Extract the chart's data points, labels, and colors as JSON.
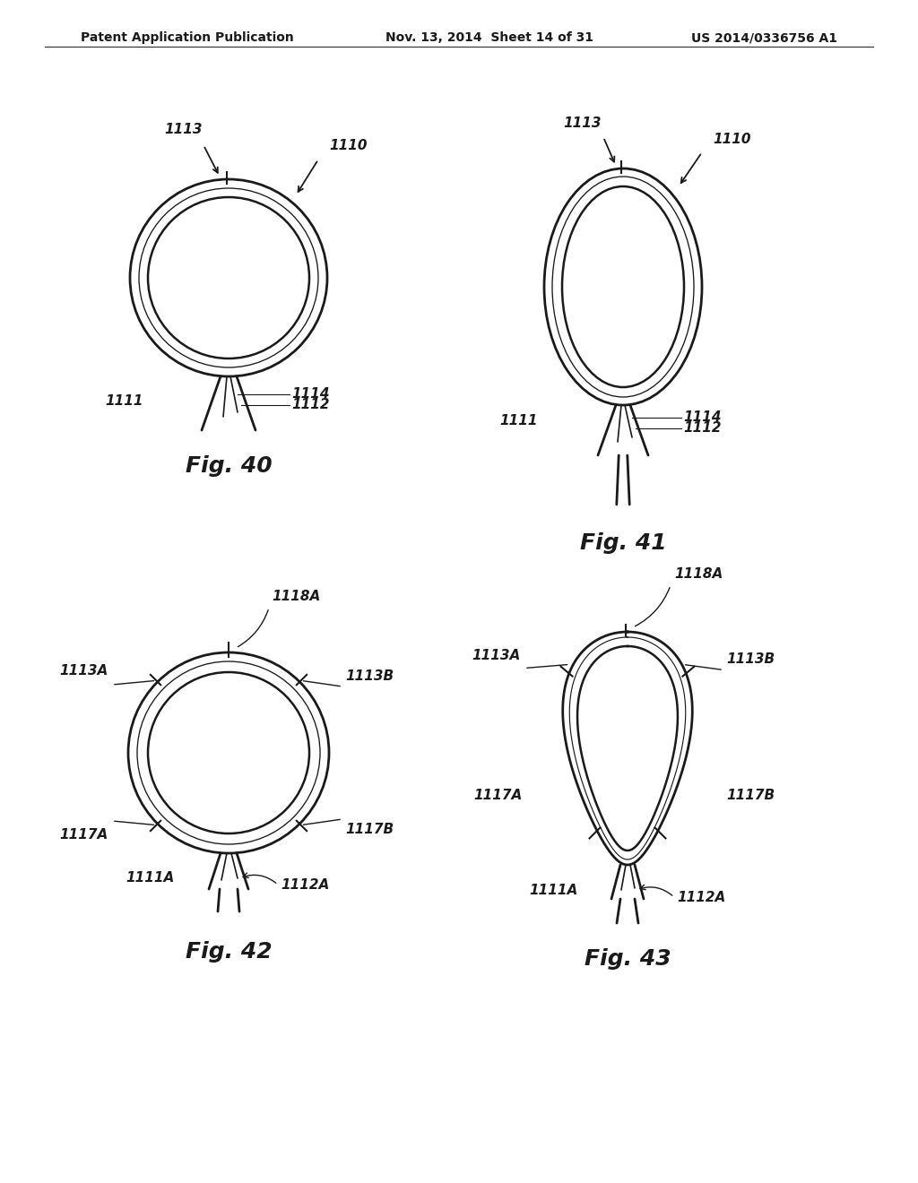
{
  "bg_color": "#ffffff",
  "line_color": "#1a1a1a",
  "header_left": "Patent Application Publication",
  "header_mid": "Nov. 13, 2014  Sheet 14 of 31",
  "header_right": "US 2014/0336756 A1",
  "fig40_label": "Fig. 40",
  "fig41_label": "Fig. 41",
  "fig42_label": "Fig. 42",
  "fig43_label": "Fig. 43",
  "lw_outer": 2.0,
  "lw_mid": 1.2,
  "lw_inner": 1.8,
  "lw_line": 1.8,
  "fs_label": 11,
  "fs_fig": 18
}
